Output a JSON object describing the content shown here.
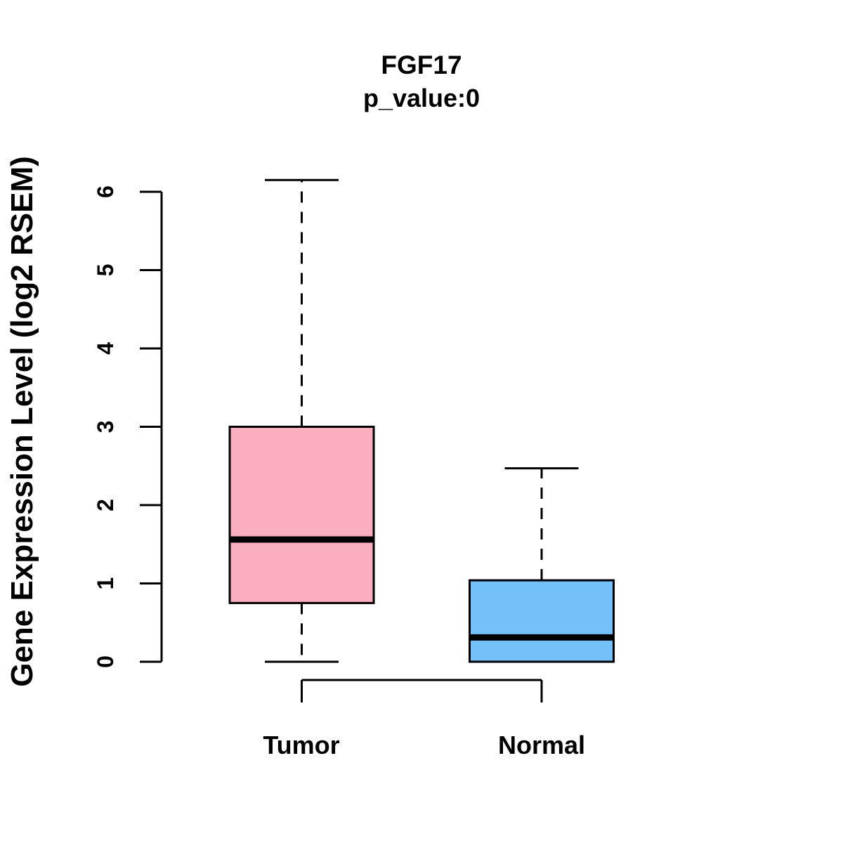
{
  "figure": {
    "background_color": "#FFFFFF",
    "line_color": "#000000"
  },
  "chart_data": {
    "type": "boxplot",
    "title": "FGF17",
    "subtitle": "p_value:0",
    "ylabel": "Gene Expression Level (log2 RSEM)",
    "xlabel": "",
    "categories": [
      "Tumor",
      "Normal"
    ],
    "series": [
      {
        "name": "Tumor",
        "min": 0,
        "q1": 0.75,
        "median": 1.56,
        "q3": 3.0,
        "max": 6.15,
        "color": "#FCAEC1"
      },
      {
        "name": "Normal",
        "min": 0,
        "q1": 0,
        "median": 0.31,
        "q3": 1.04,
        "max": 2.47,
        "color": "#74C0F9"
      }
    ],
    "ylim": [
      0,
      6.2
    ],
    "yticks": [
      0,
      1,
      2,
      3,
      4,
      5,
      6
    ],
    "grid": false,
    "legend": false,
    "whisker_style": "dashed",
    "orientation": "vertical"
  }
}
